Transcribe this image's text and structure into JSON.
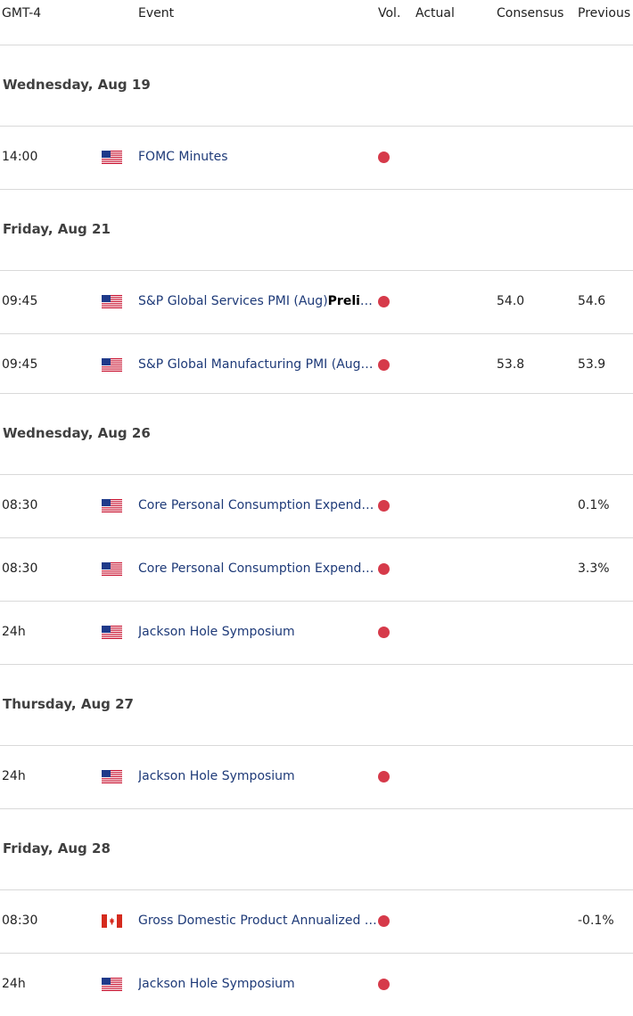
{
  "header": {
    "timezone": "GMT-4",
    "event": "Event",
    "vol": "Vol.",
    "actual": "Actual",
    "consensus": "Consensus",
    "previous": "Previous"
  },
  "colors": {
    "event_text": "#1e3a78",
    "volatility_dot": "#d63a4a",
    "divider": "#d9d9d9"
  },
  "days": [
    {
      "label": "Wednesday, Aug 19",
      "events": [
        {
          "time": "14:00",
          "flag": "us-flag-icon",
          "event": "FOMC Minutes",
          "event_bold": "",
          "actual": "",
          "consensus": "",
          "previous": ""
        }
      ]
    },
    {
      "label": "Friday, Aug 21",
      "events": [
        {
          "time": "09:45",
          "flag": "us-flag-icon",
          "event": "S&P Global Services PMI (Aug)",
          "event_bold": "Prelimi…",
          "actual": "",
          "consensus": "54.0",
          "previous": "54.6"
        },
        {
          "time": "09:45",
          "flag": "us-flag-icon",
          "event": "S&P Global Manufacturing PMI (Aug)…",
          "event_bold": "",
          "actual": "",
          "consensus": "53.8",
          "previous": "53.9"
        }
      ]
    },
    {
      "label": "Wednesday, Aug 26",
      "events": [
        {
          "time": "08:30",
          "flag": "us-flag-icon",
          "event": "Core Personal Consumption Expendit…",
          "event_bold": "",
          "actual": "",
          "consensus": "",
          "previous": "0.1%"
        },
        {
          "time": "08:30",
          "flag": "us-flag-icon",
          "event": "Core Personal Consumption Expendit…",
          "event_bold": "",
          "actual": "",
          "consensus": "",
          "previous": "3.3%"
        },
        {
          "time": "24h",
          "flag": "us-flag-icon",
          "event": "Jackson Hole Symposium",
          "event_bold": "",
          "actual": "",
          "consensus": "",
          "previous": ""
        }
      ]
    },
    {
      "label": "Thursday, Aug 27",
      "events": [
        {
          "time": "24h",
          "flag": "us-flag-icon",
          "event": "Jackson Hole Symposium",
          "event_bold": "",
          "actual": "",
          "consensus": "",
          "previous": ""
        }
      ]
    },
    {
      "label": "Friday, Aug 28",
      "events": [
        {
          "time": "08:30",
          "flag": "ca-flag-icon",
          "event": "Gross Domestic Product Annualized (…",
          "event_bold": "",
          "actual": "",
          "consensus": "",
          "previous": "-0.1%"
        },
        {
          "time": "24h",
          "flag": "us-flag-icon",
          "event": "Jackson Hole Symposium",
          "event_bold": "",
          "actual": "",
          "consensus": "",
          "previous": ""
        }
      ]
    }
  ]
}
